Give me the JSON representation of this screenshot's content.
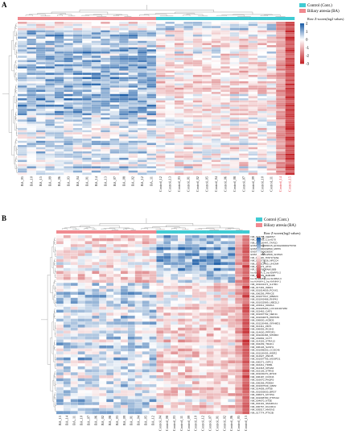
{
  "colors": {
    "control": "#40cbd3",
    "ea": "#f08a90",
    "high": "#1e5fa8",
    "low": "#c4262b",
    "mid": "#ffffff",
    "dendrogram": "#8a8a8a"
  },
  "chart_data": [
    {
      "panel": "A",
      "type": "heatmap",
      "legend": {
        "entries": [
          {
            "name": "Control (Cont.)",
            "color": "#40cbd3"
          },
          {
            "name": "Biliary atresia (BA)",
            "color": "#f08a90"
          }
        ],
        "color_scale_label": "Row Z-scores(log2 values)",
        "ticks": [
          "2",
          "1",
          "0",
          "-1",
          "-2",
          "-3"
        ],
        "zrange": [
          -3,
          2
        ]
      },
      "columns": [
        "BA_05",
        "BA_10",
        "BA_15",
        "BA_09",
        "BA_06",
        "BA_03",
        "BA_04",
        "BA_01",
        "BA_14",
        "BA_13",
        "BA_07",
        "BA_08",
        "BA_02",
        "BA_12",
        "BA_11",
        "Control_12",
        "Control_13",
        "Control_03",
        "Control_01",
        "Control_02",
        "Control_05",
        "Control_04",
        "Control_06",
        "Control_08",
        "Control_07",
        "Control_09",
        "Control_10",
        "Control_11",
        "Control_14",
        "Control_15"
      ],
      "column_groups": [
        "BA",
        "BA",
        "BA",
        "BA",
        "BA",
        "BA",
        "BA",
        "BA",
        "BA",
        "BA",
        "BA",
        "BA",
        "BA",
        "BA",
        "BA",
        "Control",
        "Control",
        "Control",
        "Control",
        "Control",
        "Control",
        "Control",
        "Control",
        "Control",
        "Control",
        "Control",
        "Control",
        "Control",
        "Control",
        "Control"
      ],
      "highlighted_columns": [
        "Control_14",
        "Control_15"
      ],
      "row_count": 72,
      "row_blocks": [
        {
          "rows": 4,
          "BA": -0.1,
          "Control": 0.5
        },
        {
          "rows": 14,
          "BA": 0.7,
          "Control": -0.3
        },
        {
          "rows": 26,
          "BA": 0.9,
          "Control": -0.4
        },
        {
          "rows": 28,
          "BA": 0.3,
          "Control": -0.2
        }
      ],
      "outlier_columns": [
        {
          "column": "Control_15",
          "z": -2.5
        },
        {
          "column": "Control_14",
          "z": -1.4
        }
      ]
    },
    {
      "panel": "B",
      "type": "heatmap",
      "legend": {
        "entries": [
          {
            "name": "Control (Cont.)",
            "color": "#40cbd3"
          },
          {
            "name": "Biliary atresia (BA)",
            "color": "#f08a90"
          }
        ],
        "color_scale_label": "Row Z-scores(log2 values)",
        "ticks": [
          "2",
          "1",
          "0",
          "-1",
          "-2",
          "-3"
        ],
        "zrange": [
          -3,
          2
        ]
      },
      "columns": [
        "BA_15",
        "BA_14",
        "BA_11",
        "BA_10",
        "BA_07",
        "BA_06",
        "BA_02",
        "BA_08",
        "BA_03",
        "BA_09",
        "BA_01",
        "BA_04",
        "BA_05",
        "BA_12",
        "Control_04",
        "Control_08",
        "Control_03",
        "Control_11",
        "Control_09",
        "Control_10",
        "Control_12",
        "Control_07",
        "Control_01",
        "Control_02",
        "Control_06",
        "Control_05",
        "Control_13"
      ],
      "column_groups": [
        "BA",
        "BA",
        "BA",
        "BA",
        "BA",
        "BA",
        "BA",
        "BA",
        "BA",
        "BA",
        "BA",
        "BA",
        "BA",
        "BA",
        "Control",
        "Control",
        "Control",
        "Control",
        "Control",
        "Control",
        "Control",
        "Control",
        "Control",
        "Control",
        "Control",
        "Control",
        "Control"
      ],
      "rows": [
        "NM_024707_GEMIN7",
        "NM_006752_C1orf170",
        "NM_001130447_TAF1D",
        "ENST00000589215_ENSG00000275700",
        "ENST00000432890_MPP6",
        "ENST00000628356",
        "ENST00000612508_SNHG5",
        "NR_027326_HIST1H2AE",
        "NM_001077628_NRCC4",
        "NM_001013400_UHCM4",
        "NM_005171_ATF1",
        "NR_033874_FAM100B",
        "lnc-ENPP1-2_lnc-ENPP1-2",
        "NM_021159_RAB40B",
        "lnc-SCRN3-3_lnc-SCRN3-3",
        "lnc-KANK4-1_lnc-KANK4-1",
        "NM_001134471_IL17RC",
        "NM_017491_WDR1",
        "NM_001014839_PCNX1",
        "NM_006256_PRKCE",
        "NM_001077617_RBM23",
        "NM_001042488_RNF43",
        "NM_001032989_UBE2L3",
        "NM_215012_KDM1A",
        "NM_001025463_LOC101927282",
        "NM_015463_CAP1",
        "NM_001007792_NEK11",
        "NM_001034876_PRPF39",
        "NM_006830_ACBD5",
        "NM_001130468_GRAMD1",
        "NM_012411_ZFP1",
        "NM_006055_RC3H2",
        "NM_014630_PPP2R1",
        "NM_001130466_MTMR3",
        "NM_181802_CCT7",
        "NM_014326_STRA13",
        "NM_004209_TRAK1",
        "NM_006146_SASH1",
        "NM_001098203_CCDC46",
        "NM_001130435_WDR2",
        "NM_014627_ZNF35",
        "NM_001007795_MOSPD1",
        "NM_000271_GIPC1",
        "NM_016211_TRIB1",
        "NM_012318_KPNA6",
        "NM_015136_STRN3",
        "NM_001136270_RHOF",
        "NM_006187_FOXN3",
        "NM_016670_PAQR3",
        "NM_006268_PDE8A",
        "NM_001007549_GBP2",
        "NM_014658_KIF5B",
        "NM_001003830_BRD7",
        "NM_006071_MYO5A",
        "NM_001008780_PTPN12",
        "NM_004670_NT5E",
        "NM_004101_SMARCA1",
        "NM_000767_DGCR14",
        "NM_005517_HMGN2",
        "NM_017774_PTK2B"
      ],
      "row_blocks": [
        {
          "rows": 16,
          "BA": -0.4,
          "Control": 0.8
        },
        {
          "rows": 44,
          "BA": 0.4,
          "Control": -0.5
        }
      ],
      "outlier_columns": [
        {
          "column": "Control_13",
          "z": -2.3
        },
        {
          "column": "Control_05",
          "z": -1.2
        }
      ]
    }
  ]
}
